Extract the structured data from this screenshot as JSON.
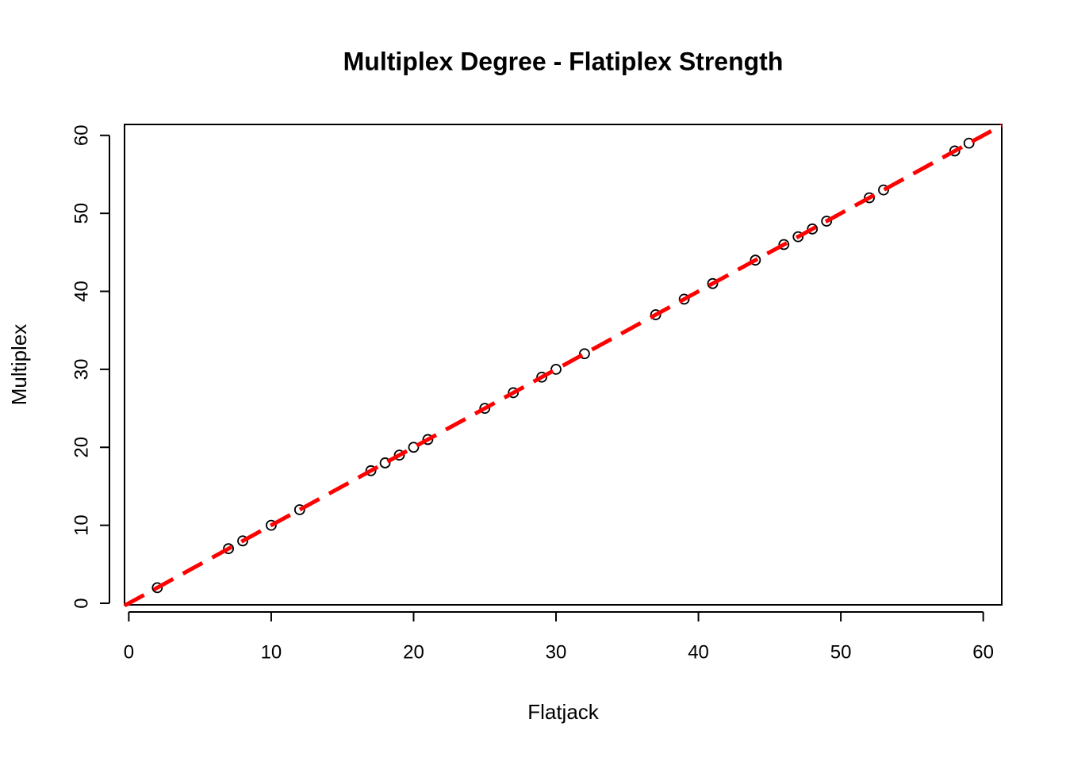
{
  "chart_data": {
    "type": "scatter",
    "title": "Multiplex Degree - Flatiplex Strength",
    "x_label": "Flatjack",
    "y_label": "Multiplex",
    "x": [
      2,
      7,
      8,
      10,
      12,
      17,
      18,
      19,
      20,
      21,
      25,
      27,
      29,
      30,
      32,
      37,
      39,
      41,
      44,
      46,
      47,
      48,
      49,
      52,
      53,
      58,
      59
    ],
    "values": [
      2,
      7,
      8,
      10,
      12,
      17,
      18,
      19,
      20,
      21,
      25,
      27,
      29,
      30,
      32,
      37,
      39,
      41,
      44,
      46,
      47,
      48,
      49,
      52,
      53,
      58,
      59
    ],
    "color": "#000000",
    "abline": {
      "intercept": 0,
      "slope": 1,
      "color": "#ff0000"
    },
    "xlim": [
      -0.3,
      61.3
    ],
    "ylim": [
      -0.2,
      61.4
    ],
    "xticks": [
      0,
      10,
      20,
      30,
      40,
      50,
      60
    ],
    "yticks": [
      0,
      10,
      20,
      30,
      40,
      50,
      60
    ]
  }
}
